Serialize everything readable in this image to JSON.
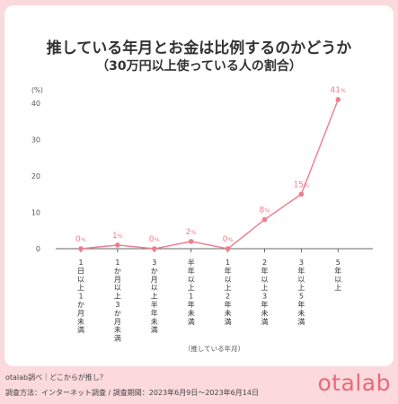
{
  "title": "推している年月とお金は比例するのかどうか",
  "subtitle": "（30万円以上使っている人の割合）",
  "chart_data": {
    "type": "line",
    "ylabel": "(%)",
    "xlabel": "（推している年月）",
    "ylim": [
      0,
      40
    ],
    "yticks": [
      0,
      10,
      20,
      30,
      40
    ],
    "categories": [
      "1日以上1か月未満",
      "1か月以上3か月未満",
      "3か月以上半年未満",
      "半年以上1年未満",
      "1年以上2年未満",
      "2年以上3年未満",
      "3年以上5年未満",
      "5年以上"
    ],
    "values": [
      0,
      1,
      0,
      2,
      0,
      8,
      15,
      41
    ],
    "value_suffix": "%",
    "line_color": "#f07c8c",
    "marker_color": "#f07c8c",
    "grid": false
  },
  "footer": {
    "source": "otalab調べ｜どこからが推し？",
    "method": "調査方法：インターネット調査 / 調査期間：2023年6月9日〜2023年6月14日"
  },
  "logo": "otalab"
}
